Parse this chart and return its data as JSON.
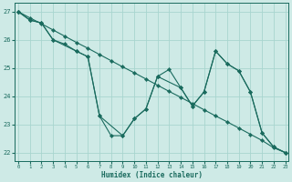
{
  "xlabel": "Humidex (Indice chaleur)",
  "ylabel_ticks": [
    22,
    23,
    24,
    25,
    26,
    27
  ],
  "xlim": [
    -0.3,
    23.3
  ],
  "ylim": [
    21.7,
    27.3
  ],
  "bg_color": "#ceeae6",
  "line_color": "#1a6b5e",
  "grid_color": "#a8d5cf",
  "line1": {
    "x": [
      0,
      1,
      2,
      3,
      4,
      5,
      6,
      7,
      8,
      9,
      10,
      11,
      12,
      13,
      14,
      15,
      16,
      17,
      18,
      19,
      20,
      21,
      22,
      23
    ],
    "y": [
      27.0,
      26.78,
      26.57,
      26.35,
      26.13,
      25.91,
      25.7,
      25.48,
      25.26,
      25.04,
      24.83,
      24.61,
      24.39,
      24.17,
      23.96,
      23.74,
      23.52,
      23.3,
      23.09,
      22.87,
      22.65,
      22.43,
      22.17,
      22.0
    ]
  },
  "line2": {
    "x": [
      0,
      1,
      2,
      3,
      4,
      5,
      6,
      7,
      8,
      9,
      10,
      11,
      12,
      13,
      14,
      15,
      16,
      17,
      18,
      19,
      20,
      21,
      22,
      23
    ],
    "y": [
      27.0,
      26.7,
      26.6,
      26.0,
      25.85,
      25.6,
      25.4,
      23.3,
      22.6,
      22.6,
      23.2,
      23.55,
      24.7,
      24.95,
      24.3,
      23.65,
      24.15,
      25.6,
      25.15,
      24.9,
      24.15,
      22.7,
      22.2,
      22.0
    ]
  },
  "line3": {
    "x": [
      0,
      1,
      2,
      3,
      5,
      6,
      7,
      9,
      10,
      11,
      12,
      14,
      15,
      16,
      17,
      18,
      19,
      20,
      21,
      22,
      23
    ],
    "y": [
      27.0,
      26.7,
      26.6,
      26.0,
      25.6,
      25.4,
      23.3,
      22.6,
      23.2,
      23.55,
      24.7,
      24.3,
      23.65,
      24.15,
      25.6,
      25.15,
      24.9,
      24.15,
      22.7,
      22.2,
      22.0
    ]
  }
}
